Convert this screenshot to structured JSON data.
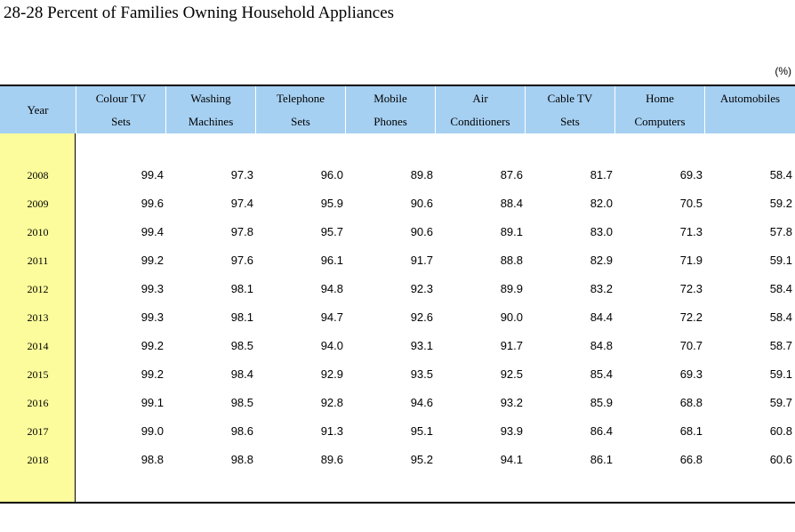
{
  "title": "28-28  Percent of Families Owning Household Appliances",
  "unit": "(%)",
  "table": {
    "year_header": "Year",
    "columns": [
      {
        "line1": "Colour TV",
        "line2": "Sets"
      },
      {
        "line1": "Washing",
        "line2": "Machines"
      },
      {
        "line1": "Telephone",
        "line2": "Sets"
      },
      {
        "line1": "Mobile",
        "line2": "Phones"
      },
      {
        "line1": "Air",
        "line2": "Conditioners"
      },
      {
        "line1": "Cable TV",
        "line2": "Sets"
      },
      {
        "line1": "Home",
        "line2": "Computers"
      },
      {
        "line1": "Automobiles",
        "line2": ""
      }
    ],
    "rows": [
      {
        "year": "2008",
        "values": [
          "99.4",
          "97.3",
          "96.0",
          "89.8",
          "87.6",
          "81.7",
          "69.3",
          "58.4"
        ]
      },
      {
        "year": "2009",
        "values": [
          "99.6",
          "97.4",
          "95.9",
          "90.6",
          "88.4",
          "82.0",
          "70.5",
          "59.2"
        ]
      },
      {
        "year": "2010",
        "values": [
          "99.4",
          "97.8",
          "95.7",
          "90.6",
          "89.1",
          "83.0",
          "71.3",
          "57.8"
        ]
      },
      {
        "year": "2011",
        "values": [
          "99.2",
          "97.6",
          "96.1",
          "91.7",
          "88.8",
          "82.9",
          "71.9",
          "59.1"
        ]
      },
      {
        "year": "2012",
        "values": [
          "99.3",
          "98.1",
          "94.8",
          "92.3",
          "89.9",
          "83.2",
          "72.3",
          "58.4"
        ]
      },
      {
        "year": "2013",
        "values": [
          "99.3",
          "98.1",
          "94.7",
          "92.6",
          "90.0",
          "84.4",
          "72.2",
          "58.4"
        ]
      },
      {
        "year": "2014",
        "values": [
          "99.2",
          "98.5",
          "94.0",
          "93.1",
          "91.7",
          "84.8",
          "70.7",
          "58.7"
        ]
      },
      {
        "year": "2015",
        "values": [
          "99.2",
          "98.4",
          "92.9",
          "93.5",
          "92.5",
          "85.4",
          "69.3",
          "59.1"
        ]
      },
      {
        "year": "2016",
        "values": [
          "99.1",
          "98.5",
          "92.8",
          "94.6",
          "93.2",
          "85.9",
          "68.8",
          "59.7"
        ]
      },
      {
        "year": "2017",
        "values": [
          "99.0",
          "98.6",
          "91.3",
          "95.1",
          "93.9",
          "86.4",
          "68.1",
          "60.8"
        ]
      },
      {
        "year": "2018",
        "values": [
          "98.8",
          "98.8",
          "89.6",
          "95.2",
          "94.1",
          "86.1",
          "66.8",
          "60.6"
        ]
      }
    ]
  }
}
